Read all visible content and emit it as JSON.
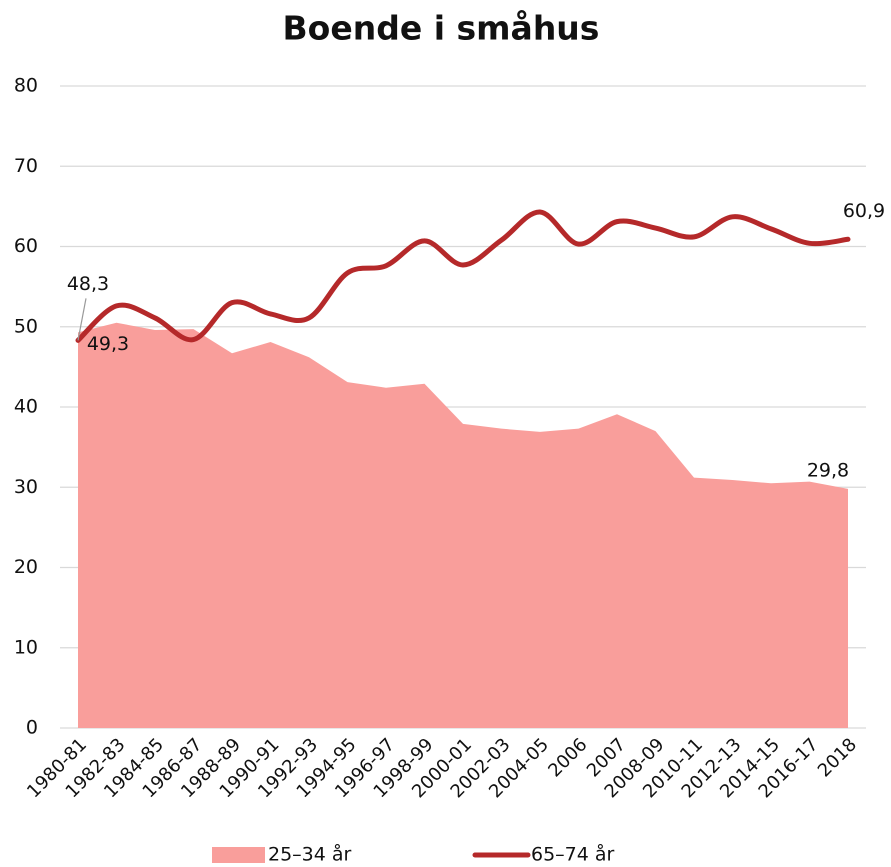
{
  "chart_data": {
    "type": "line",
    "title": "Boende i småhus",
    "categories": [
      "1980-81",
      "1982-83",
      "1984-85",
      "1986-87",
      "1988-89",
      "1990-91",
      "1992-93",
      "1994-95",
      "1996-97",
      "1998-99",
      "2000-01",
      "2002-03",
      "2004-05",
      "2006",
      "2007",
      "2008-09",
      "2010-11",
      "2012-13",
      "2014-15",
      "2016-17",
      "2018"
    ],
    "series": [
      {
        "name": "25–34 år",
        "type": "area",
        "color": "#f99e9b",
        "values": [
          49.3,
          50.5,
          49.6,
          49.7,
          46.7,
          48.1,
          46.2,
          43.1,
          42.4,
          42.9,
          37.9,
          37.3,
          36.9,
          37.3,
          39.1,
          37.0,
          31.2,
          30.9,
          30.5,
          30.7,
          29.8
        ],
        "value_labels": [
          "49,3",
          null,
          null,
          null,
          null,
          null,
          null,
          null,
          null,
          null,
          null,
          null,
          null,
          null,
          null,
          null,
          null,
          null,
          null,
          null,
          "29,8"
        ]
      },
      {
        "name": "65–74 år",
        "type": "line",
        "color": "#b5292a",
        "values": [
          48.3,
          52.6,
          51.1,
          48.4,
          53.0,
          51.6,
          51.1,
          56.7,
          57.6,
          60.7,
          57.7,
          60.8,
          64.3,
          60.3,
          63.1,
          62.3,
          61.2,
          63.7,
          62.2,
          60.4,
          60.9
        ],
        "value_labels": [
          "48,3",
          null,
          null,
          null,
          null,
          null,
          null,
          null,
          null,
          null,
          null,
          null,
          null,
          null,
          null,
          null,
          null,
          null,
          null,
          null,
          "60,9"
        ]
      }
    ],
    "ylim": [
      0,
      80
    ],
    "yticks": [
      0,
      10,
      20,
      30,
      40,
      50,
      60,
      70,
      80
    ],
    "grid": true,
    "legend": "bottom"
  }
}
